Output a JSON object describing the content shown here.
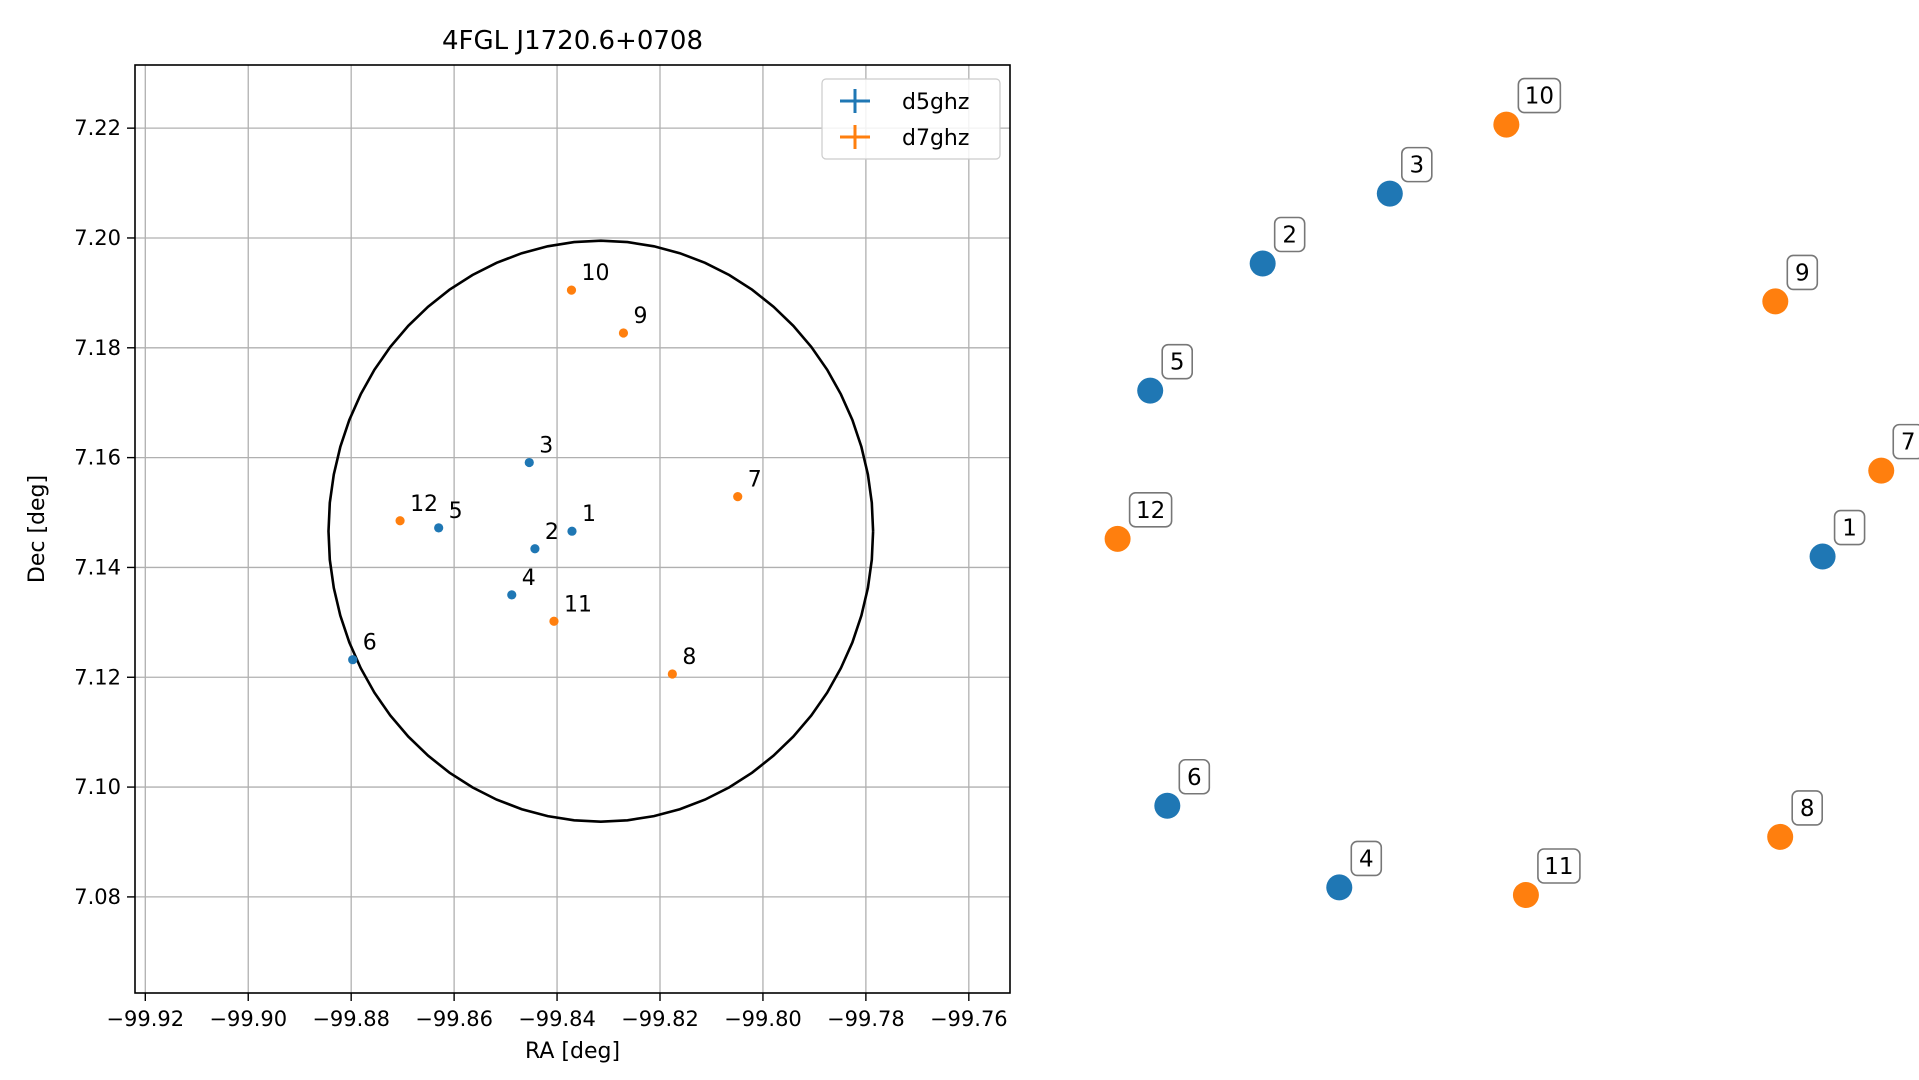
{
  "colors": {
    "d5ghz": "#1f77b4",
    "d7ghz": "#ff7f0e",
    "circle": "#000000",
    "grid": "#b0b0b0"
  },
  "chart_data": [
    {
      "type": "scatter",
      "title": "4FGL J1720.6+0708",
      "xlabel": "RA [deg]",
      "ylabel": "Dec [deg]",
      "xlim": [
        -99.922,
        -99.752
      ],
      "ylim": [
        7.0625,
        7.2315
      ],
      "xticks": [
        -99.92,
        -99.9,
        -99.88,
        -99.86,
        -99.84,
        -99.82,
        -99.8,
        -99.78,
        -99.76
      ],
      "xtick_labels": [
        "−99.92",
        "−99.90",
        "−99.88",
        "−99.86",
        "−99.84",
        "−99.82",
        "−99.80",
        "−99.78",
        "−99.76"
      ],
      "yticks": [
        7.08,
        7.1,
        7.12,
        7.14,
        7.16,
        7.18,
        7.2,
        7.22
      ],
      "ytick_labels": [
        "7.08",
        "7.10",
        "7.12",
        "7.14",
        "7.16",
        "7.18",
        "7.20",
        "7.22"
      ],
      "grid": true,
      "legend_position": "top-right",
      "circle": {
        "center_ra": -99.8315,
        "center_dec": 7.1466,
        "radius_deg": 0.0529
      },
      "series": [
        {
          "name": "d5ghz",
          "points": [
            {
              "id": "1",
              "ra": -99.8371,
              "dec": 7.1466
            },
            {
              "id": "2",
              "ra": -99.8443,
              "dec": 7.1434
            },
            {
              "id": "3",
              "ra": -99.8454,
              "dec": 7.1591
            },
            {
              "id": "4",
              "ra": -99.8488,
              "dec": 7.135
            },
            {
              "id": "5",
              "ra": -99.863,
              "dec": 7.1472
            },
            {
              "id": "6",
              "ra": -99.8797,
              "dec": 7.1232
            }
          ]
        },
        {
          "name": "d7ghz",
          "points": [
            {
              "id": "7",
              "ra": -99.8049,
              "dec": 7.1529
            },
            {
              "id": "8",
              "ra": -99.8176,
              "dec": 7.1206
            },
            {
              "id": "9",
              "ra": -99.8271,
              "dec": 7.1827
            },
            {
              "id": "10",
              "ra": -99.8372,
              "dec": 7.1905
            },
            {
              "id": "11",
              "ra": -99.8406,
              "dec": 7.1302
            },
            {
              "id": "12",
              "ra": -99.8705,
              "dec": 7.1485
            }
          ]
        }
      ]
    },
    {
      "type": "scatter",
      "axes": "off",
      "points": [
        {
          "id": "1",
          "series": "d5ghz",
          "x": 0.905,
          "y": 0.44
        },
        {
          "id": "2",
          "series": "d5ghz",
          "x": 0.218,
          "y": 0.788
        },
        {
          "id": "3",
          "series": "d5ghz",
          "x": 0.374,
          "y": 0.871
        },
        {
          "id": "4",
          "series": "d5ghz",
          "x": 0.312,
          "y": 0.047
        },
        {
          "id": "5",
          "series": "d5ghz",
          "x": 0.08,
          "y": 0.637
        },
        {
          "id": "6",
          "series": "d5ghz",
          "x": 0.101,
          "y": 0.144
        },
        {
          "id": "7",
          "series": "d7ghz",
          "x": 0.977,
          "y": 0.542
        },
        {
          "id": "8",
          "series": "d7ghz",
          "x": 0.853,
          "y": 0.107
        },
        {
          "id": "9",
          "series": "d7ghz",
          "x": 0.847,
          "y": 0.743
        },
        {
          "id": "10",
          "series": "d7ghz",
          "x": 0.517,
          "y": 0.953
        },
        {
          "id": "11",
          "series": "d7ghz",
          "x": 0.541,
          "y": 0.038
        },
        {
          "id": "12",
          "series": "d7ghz",
          "x": 0.04,
          "y": 0.461
        }
      ]
    }
  ]
}
